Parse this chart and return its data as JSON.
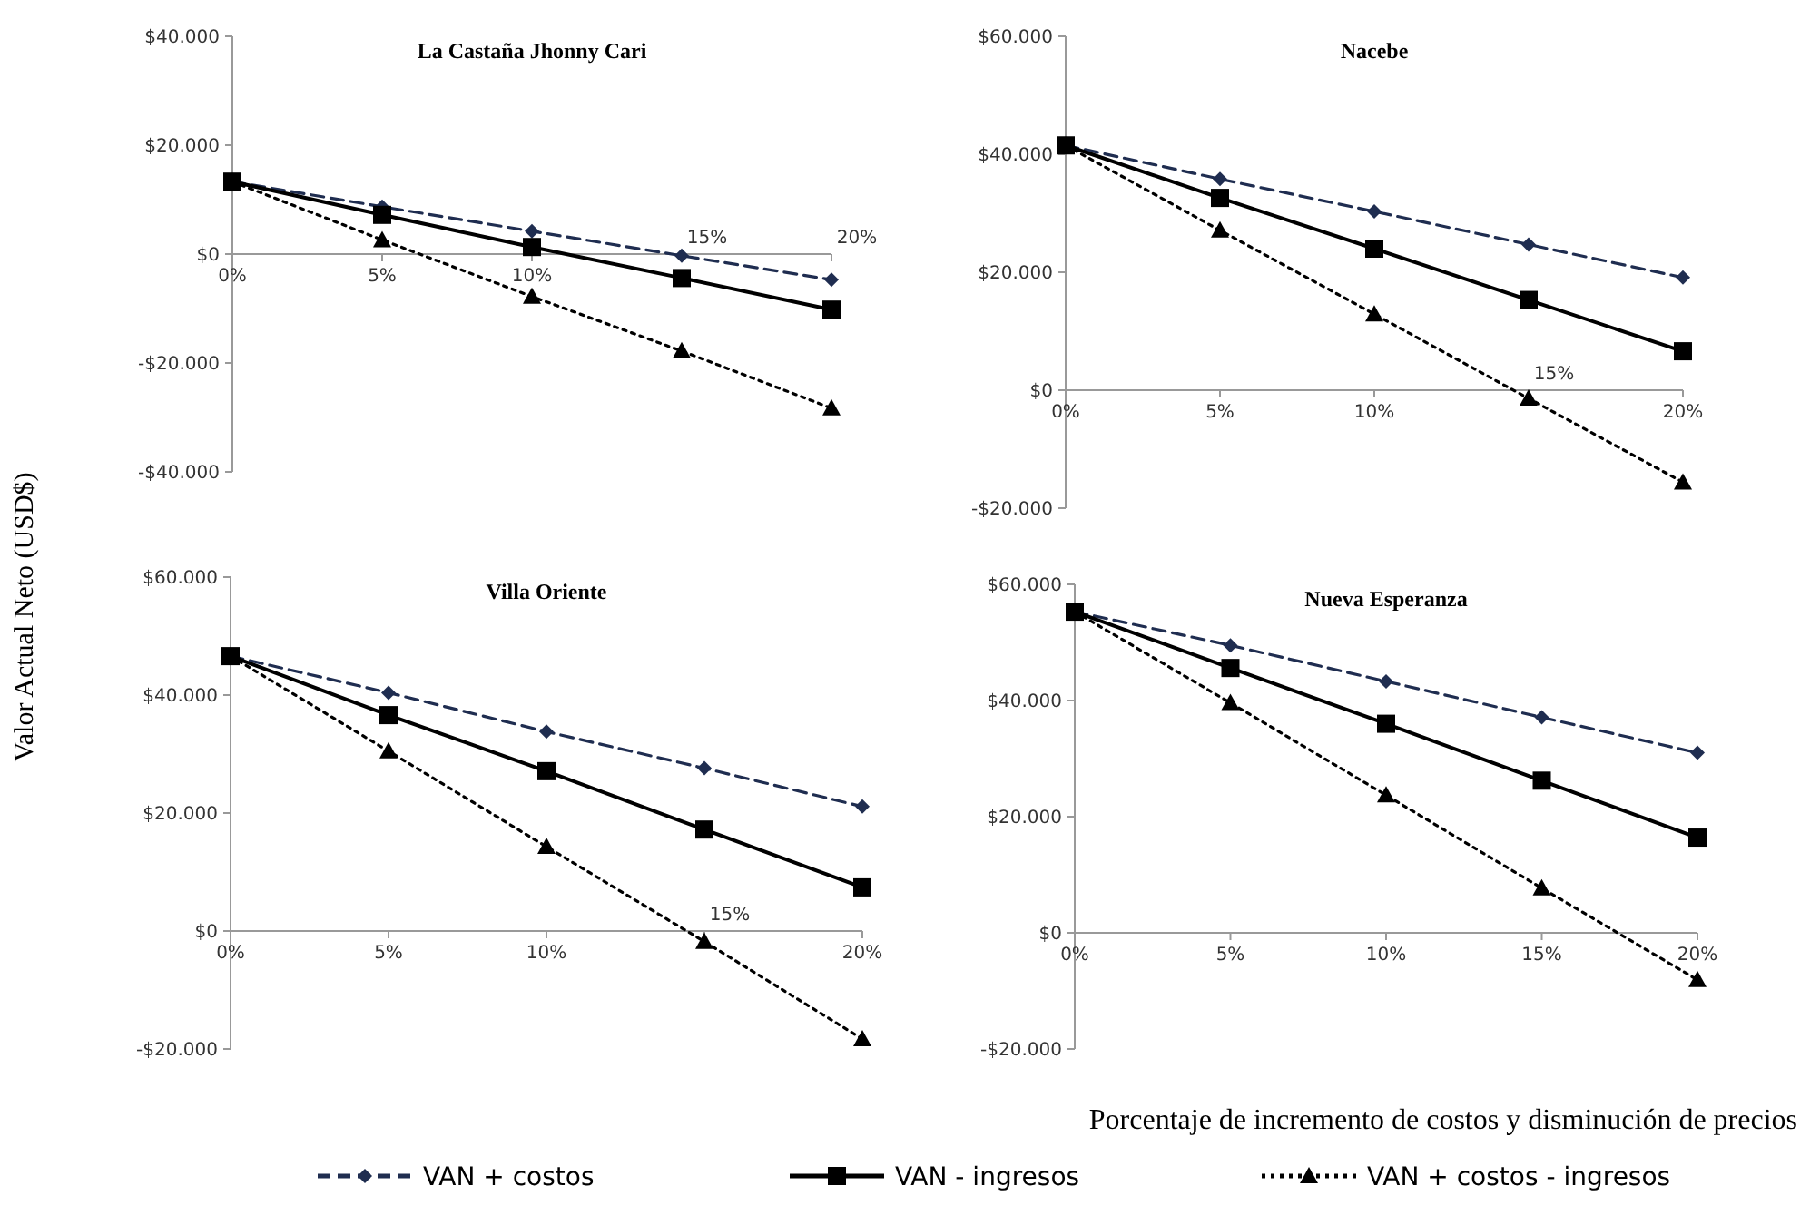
{
  "chart_data": [
    {
      "type": "line",
      "title": "La Castaña Jhonny Cari",
      "ylabel": "Valor Actual Neto (USD$)",
      "legend": "bottom",
      "categories": [
        "0%",
        "5%",
        "10%",
        "15%",
        "20%"
      ],
      "ylim": [
        -40000,
        40000
      ],
      "yticks": [
        {
          "value": -40000,
          "label": "-$40.000"
        },
        {
          "value": -20000,
          "label": "-$20.000"
        },
        {
          "value": 0,
          "label": "$0"
        },
        {
          "value": 20000,
          "label": "$20.000"
        },
        {
          "value": 40000,
          "label": "$40.000"
        }
      ],
      "series": [
        {
          "name": "VAN + costos",
          "color": "#1f2d50",
          "marker": "diamond",
          "line_style": "dashed",
          "values": [
            13300,
            8700,
            4200,
            -300,
            -4700
          ]
        },
        {
          "name": "VAN - ingresos",
          "color": "#000000",
          "marker": "square",
          "line_style": "solid",
          "values": [
            13300,
            7200,
            1300,
            -4400,
            -10200
          ]
        },
        {
          "name": "VAN + costos - ingresos",
          "color": "#000000",
          "marker": "triangle",
          "line_style": "dotted",
          "values": [
            13300,
            2600,
            -7800,
            -17800,
            -28300
          ]
        }
      ]
    },
    {
      "type": "line",
      "title": "Nacebe",
      "categories": [
        "0%",
        "5%",
        "10%",
        "15%",
        "20%"
      ],
      "ylim": [
        -20000,
        60000
      ],
      "yticks": [
        {
          "value": -20000,
          "label": "-$20.000"
        },
        {
          "value": 0,
          "label": "$0"
        },
        {
          "value": 20000,
          "label": "$20.000"
        },
        {
          "value": 40000,
          "label": "$40.000"
        },
        {
          "value": 60000,
          "label": "$60.000"
        }
      ],
      "series": [
        {
          "name": "VAN + costos",
          "color": "#1f2d50",
          "marker": "diamond",
          "line_style": "dashed",
          "values": [
            41500,
            35800,
            30300,
            24700,
            19100
          ]
        },
        {
          "name": "VAN - ingresos",
          "color": "#000000",
          "marker": "square",
          "line_style": "solid",
          "values": [
            41500,
            32600,
            24000,
            15300,
            6600
          ]
        },
        {
          "name": "VAN + costos - ingresos",
          "color": "#000000",
          "marker": "triangle",
          "line_style": "dotted",
          "values": [
            41500,
            27100,
            12900,
            -1400,
            -15600
          ]
        }
      ]
    },
    {
      "type": "line",
      "title": "Villa Oriente",
      "categories": [
        "0%",
        "5%",
        "10%",
        "15%",
        "20%"
      ],
      "ylim": [
        -20000,
        60000
      ],
      "yticks": [
        {
          "value": -20000,
          "label": "-$20.000"
        },
        {
          "value": 0,
          "label": "$0"
        },
        {
          "value": 20000,
          "label": "$20.000"
        },
        {
          "value": 40000,
          "label": "$40.000"
        },
        {
          "value": 60000,
          "label": "$60.000"
        }
      ],
      "series": [
        {
          "name": "VAN + costos",
          "color": "#1f2d50",
          "marker": "diamond",
          "line_style": "dashed",
          "values": [
            46600,
            40400,
            33800,
            27600,
            21100
          ]
        },
        {
          "name": "VAN - ingresos",
          "color": "#000000",
          "marker": "square",
          "line_style": "solid",
          "values": [
            46600,
            36600,
            27100,
            17200,
            7400
          ]
        },
        {
          "name": "VAN + costos - ingresos",
          "color": "#000000",
          "marker": "triangle",
          "line_style": "dotted",
          "values": [
            46600,
            30500,
            14300,
            -1800,
            -18300
          ]
        }
      ]
    },
    {
      "type": "line",
      "title": "Nueva Esperanza",
      "xlabel": "Porcentaje de incremento de costos y disminución de precios",
      "categories": [
        "0%",
        "5%",
        "10%",
        "15%",
        "20%"
      ],
      "ylim": [
        -20000,
        60000
      ],
      "yticks": [
        {
          "value": -20000,
          "label": "-$20.000"
        },
        {
          "value": 0,
          "label": "$0"
        },
        {
          "value": 20000,
          "label": "$20.000"
        },
        {
          "value": 40000,
          "label": "$40.000"
        },
        {
          "value": 60000,
          "label": "$60.000"
        }
      ],
      "series": [
        {
          "name": "VAN + costos",
          "color": "#1f2d50",
          "marker": "diamond",
          "line_style": "dashed",
          "values": [
            55300,
            49500,
            43300,
            37100,
            31000
          ]
        },
        {
          "name": "VAN - ingresos",
          "color": "#000000",
          "marker": "square",
          "line_style": "solid",
          "values": [
            55300,
            45600,
            36000,
            26200,
            16400
          ]
        },
        {
          "name": "VAN + costos - ingresos",
          "color": "#000000",
          "marker": "triangle",
          "line_style": "dotted",
          "values": [
            55300,
            39600,
            23700,
            7700,
            -8100
          ]
        }
      ]
    }
  ]
}
